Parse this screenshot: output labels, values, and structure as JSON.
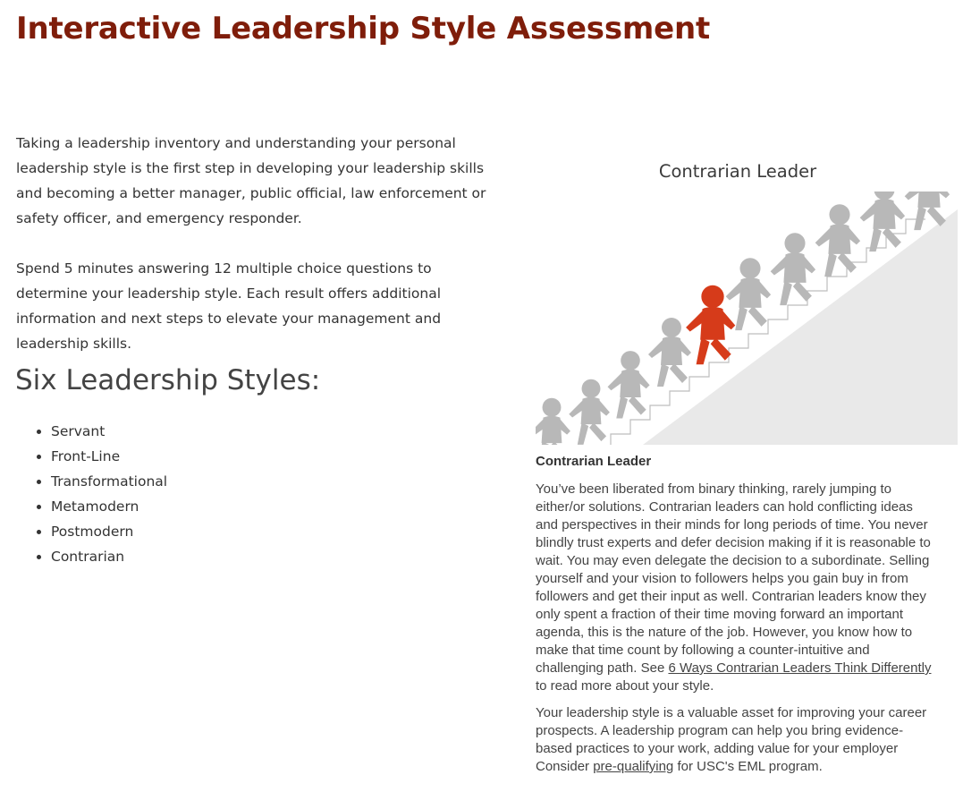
{
  "page": {
    "title": "Interactive Leadership Style Assessment",
    "intro_paragraphs": [
      "Taking a leadership inventory and understanding your personal leadership style is the first step in developing your leadership skills and becoming a better manager, public official, law enforcement or safety officer, and emergency responder.",
      "Spend 5 minutes answering 12 multiple choice questions to determine your leadership style. Each result offers additional information and next steps to elevate your management and leadership skills."
    ],
    "styles_heading": "Six Leadership Styles:",
    "styles": [
      "Servant",
      "Front-Line",
      "Transformational",
      "Metamodern",
      "Postmodern",
      "Contrarian"
    ]
  },
  "result": {
    "title": "Contrarian Leader",
    "image_icon": "people-climbing-stairs-illustration",
    "name": "Contrarian Leader",
    "description_text": "You’ve been liberated from binary thinking, rarely jumping to either/or solutions. Contrarian leaders can hold conflicting ideas and perspectives in their minds for long periods of time. You never blindly trust experts and defer decision making if it is reasonable to wait. You may even delegate the decision to a subordinate. Selling yourself and your vision to followers helps you gain buy in from followers and get their input as well. Contrarian leaders know they only spent a fraction of their time moving forward an important agenda, this is the nature of the job. However, you know how to make that time count by following a counter-intuitive and challenging path. See",
    "description_link": "6 Ways Contrarian Leaders Think Differently",
    "description_after": "to read more about your style.",
    "cta_text": "Your leadership style is a valuable asset for improving your career prospects. A leadership program can help you bring evidence-based practices to your work, adding value for your employer Consider",
    "cta_link": "pre-qualifying",
    "cta_after": "for USC's EML program."
  },
  "colors": {
    "title": "#7f1d0a",
    "leader_figure": "#d63b1a",
    "follower_figure": "#b8b8b8"
  }
}
